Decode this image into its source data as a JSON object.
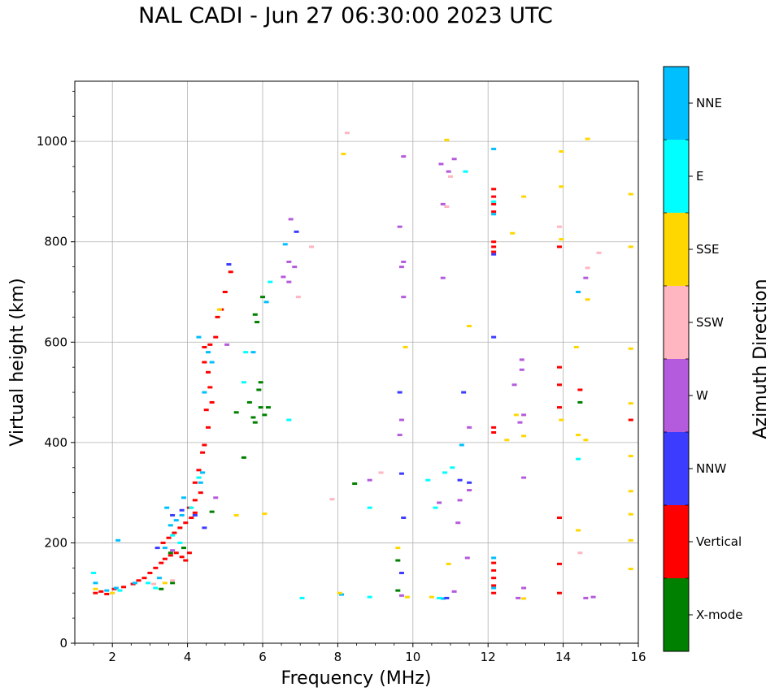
{
  "chart_data": {
    "type": "scatter",
    "title": "NAL CADI - Jun 27 06:30:00 2023 UTC",
    "xlabel": "Frequency (MHz)",
    "ylabel": "Virtual height (km)",
    "xlim": [
      1,
      16
    ],
    "ylim": [
      0,
      1120
    ],
    "xticks": [
      2,
      4,
      6,
      8,
      10,
      12,
      14,
      16
    ],
    "yticks": [
      0,
      200,
      400,
      600,
      800,
      1000
    ],
    "grid": true,
    "colorbar": {
      "label": "Azimuth Direction",
      "categories": [
        {
          "name": "X-mode",
          "color": "#008000"
        },
        {
          "name": "Vertical",
          "color": "#ff0000"
        },
        {
          "name": "NNW",
          "color": "#3c3cff"
        },
        {
          "name": "W",
          "color": "#b45adc"
        },
        {
          "name": "SSW",
          "color": "#ffb6c1"
        },
        {
          "name": "SSE",
          "color": "#ffd700"
        },
        {
          "name": "E",
          "color": "#00ffff"
        },
        {
          "name": "NNE",
          "color": "#00bfff"
        }
      ]
    },
    "series": [
      {
        "name": "Vertical",
        "points": [
          [
            1.55,
            100
          ],
          [
            1.7,
            103
          ],
          [
            1.85,
            98
          ],
          [
            2.05,
            108
          ],
          [
            2.3,
            112
          ],
          [
            2.55,
            118
          ],
          [
            2.7,
            125
          ],
          [
            2.85,
            130
          ],
          [
            3.0,
            140
          ],
          [
            3.15,
            150
          ],
          [
            3.3,
            160
          ],
          [
            3.4,
            168
          ],
          [
            3.55,
            175
          ],
          [
            3.7,
            180
          ],
          [
            3.85,
            172
          ],
          [
            3.95,
            165
          ],
          [
            4.05,
            180
          ],
          [
            3.35,
            200
          ],
          [
            3.5,
            210
          ],
          [
            3.65,
            220
          ],
          [
            3.8,
            230
          ],
          [
            3.95,
            240
          ],
          [
            4.1,
            250
          ],
          [
            4.2,
            260
          ],
          [
            4.05,
            270
          ],
          [
            4.2,
            285
          ],
          [
            4.35,
            300
          ],
          [
            4.2,
            320
          ],
          [
            4.3,
            345
          ],
          [
            4.4,
            380
          ],
          [
            4.45,
            395
          ],
          [
            4.55,
            430
          ],
          [
            4.5,
            465
          ],
          [
            4.65,
            480
          ],
          [
            4.6,
            510
          ],
          [
            4.55,
            540
          ],
          [
            4.45,
            560
          ],
          [
            4.45,
            590
          ],
          [
            4.6,
            595
          ],
          [
            4.75,
            610
          ],
          [
            4.8,
            650
          ],
          [
            4.9,
            665
          ],
          [
            5.0,
            700
          ],
          [
            5.15,
            740
          ],
          [
            12.15,
            100
          ],
          [
            12.15,
            115
          ],
          [
            12.15,
            130
          ],
          [
            12.15,
            145
          ],
          [
            12.15,
            160
          ],
          [
            12.15,
            420
          ],
          [
            12.15,
            430
          ],
          [
            12.15,
            780
          ],
          [
            12.15,
            790
          ],
          [
            12.15,
            800
          ],
          [
            12.15,
            860
          ],
          [
            12.15,
            875
          ],
          [
            12.15,
            890
          ],
          [
            12.15,
            905
          ],
          [
            13.9,
            100
          ],
          [
            13.9,
            158
          ],
          [
            13.9,
            250
          ],
          [
            13.9,
            470
          ],
          [
            13.9,
            515
          ],
          [
            13.9,
            550
          ],
          [
            13.9,
            790
          ],
          [
            14.45,
            505
          ],
          [
            15.8,
            445
          ]
        ]
      },
      {
        "name": "NNE",
        "points": [
          [
            1.55,
            120
          ],
          [
            1.85,
            105
          ],
          [
            2.1,
            110
          ],
          [
            2.15,
            205
          ],
          [
            2.6,
            120
          ],
          [
            3.25,
            130
          ],
          [
            3.4,
            190
          ],
          [
            3.55,
            235
          ],
          [
            3.7,
            245
          ],
          [
            3.85,
            255
          ],
          [
            3.45,
            270
          ],
          [
            3.9,
            290
          ],
          [
            4.35,
            320
          ],
          [
            4.4,
            340
          ],
          [
            4.65,
            560
          ],
          [
            4.45,
            500
          ],
          [
            4.3,
            610
          ],
          [
            4.55,
            580
          ],
          [
            6.1,
            680
          ],
          [
            6.6,
            795
          ],
          [
            5.75,
            580
          ],
          [
            12.15,
            110
          ],
          [
            12.15,
            170
          ],
          [
            12.15,
            855
          ],
          [
            12.15,
            985
          ],
          [
            11.3,
            395
          ],
          [
            14.4,
            700
          ],
          [
            8.1,
            97
          ],
          [
            10.8,
            89
          ]
        ]
      },
      {
        "name": "E",
        "points": [
          [
            1.5,
            140
          ],
          [
            2.2,
            105
          ],
          [
            2.95,
            120
          ],
          [
            3.15,
            110
          ],
          [
            3.6,
            215
          ],
          [
            3.8,
            200
          ],
          [
            4.1,
            270
          ],
          [
            4.3,
            330
          ],
          [
            5.55,
            580
          ],
          [
            5.5,
            520
          ],
          [
            6.2,
            720
          ],
          [
            6.7,
            445
          ],
          [
            7.05,
            90
          ],
          [
            8.85,
            270
          ],
          [
            10.4,
            325
          ],
          [
            10.6,
            270
          ],
          [
            10.85,
            340
          ],
          [
            11.05,
            350
          ],
          [
            11.4,
            940
          ],
          [
            12.15,
            880
          ],
          [
            14.4,
            367
          ],
          [
            8.85,
            92
          ],
          [
            10.7,
            90
          ]
        ]
      },
      {
        "name": "X-mode",
        "points": [
          [
            3.3,
            108
          ],
          [
            3.6,
            120
          ],
          [
            3.55,
            180
          ],
          [
            3.9,
            190
          ],
          [
            4.65,
            262
          ],
          [
            5.3,
            460
          ],
          [
            5.5,
            370
          ],
          [
            5.65,
            480
          ],
          [
            5.75,
            450
          ],
          [
            5.8,
            440
          ],
          [
            5.95,
            470
          ],
          [
            6.05,
            455
          ],
          [
            6.15,
            470
          ],
          [
            5.9,
            505
          ],
          [
            5.95,
            520
          ],
          [
            5.85,
            640
          ],
          [
            5.8,
            655
          ],
          [
            6.0,
            690
          ],
          [
            8.45,
            318
          ],
          [
            9.6,
            105
          ],
          [
            9.6,
            165
          ],
          [
            14.45,
            480
          ]
        ]
      },
      {
        "name": "NNW",
        "points": [
          [
            3.2,
            190
          ],
          [
            3.6,
            255
          ],
          [
            3.85,
            265
          ],
          [
            4.2,
            255
          ],
          [
            4.45,
            230
          ],
          [
            5.1,
            755
          ],
          [
            6.9,
            820
          ],
          [
            9.7,
            338
          ],
          [
            9.75,
            250
          ],
          [
            9.65,
            500
          ],
          [
            11.35,
            500
          ],
          [
            11.25,
            325
          ],
          [
            11.5,
            320
          ],
          [
            12.15,
            610
          ],
          [
            12.15,
            775
          ],
          [
            10.9,
            90
          ],
          [
            9.7,
            140
          ]
        ]
      },
      {
        "name": "W",
        "points": [
          [
            3.6,
            185
          ],
          [
            4.75,
            290
          ],
          [
            5.05,
            595
          ],
          [
            6.55,
            730
          ],
          [
            6.7,
            720
          ],
          [
            6.75,
            845
          ],
          [
            6.7,
            760
          ],
          [
            6.85,
            750
          ],
          [
            8.85,
            325
          ],
          [
            9.65,
            415
          ],
          [
            9.7,
            445
          ],
          [
            9.75,
            690
          ],
          [
            9.7,
            750
          ],
          [
            9.75,
            760
          ],
          [
            9.65,
            830
          ],
          [
            9.75,
            970
          ],
          [
            9.7,
            95
          ],
          [
            10.7,
            280
          ],
          [
            10.8,
            728
          ],
          [
            10.8,
            875
          ],
          [
            10.75,
            955
          ],
          [
            10.95,
            940
          ],
          [
            11.1,
            965
          ],
          [
            11.2,
            240
          ],
          [
            11.25,
            285
          ],
          [
            11.45,
            170
          ],
          [
            11.5,
            305
          ],
          [
            11.5,
            430
          ],
          [
            11.1,
            103
          ],
          [
            12.7,
            515
          ],
          [
            12.85,
            440
          ],
          [
            12.9,
            565
          ],
          [
            12.9,
            545
          ],
          [
            12.95,
            455
          ],
          [
            12.95,
            330
          ],
          [
            12.95,
            110
          ],
          [
            12.8,
            90
          ],
          [
            14.6,
            728
          ],
          [
            14.6,
            90
          ],
          [
            14.8,
            92
          ]
        ]
      },
      {
        "name": "SSW",
        "points": [
          [
            3.1,
            118
          ],
          [
            3.6,
            125
          ],
          [
            6.95,
            690
          ],
          [
            7.3,
            790
          ],
          [
            7.85,
            287
          ],
          [
            8.25,
            1017
          ],
          [
            9.15,
            340
          ],
          [
            10.9,
            870
          ],
          [
            11.0,
            930
          ],
          [
            13.9,
            830
          ],
          [
            14.45,
            180
          ],
          [
            14.65,
            748
          ],
          [
            14.95,
            778
          ]
        ]
      },
      {
        "name": "SSE",
        "points": [
          [
            1.55,
            108
          ],
          [
            2.0,
            100
          ],
          [
            3.4,
            120
          ],
          [
            4.85,
            665
          ],
          [
            5.3,
            255
          ],
          [
            6.05,
            258
          ],
          [
            8.05,
            100
          ],
          [
            8.15,
            975
          ],
          [
            9.8,
            590
          ],
          [
            9.85,
            92
          ],
          [
            9.6,
            190
          ],
          [
            10.5,
            92
          ],
          [
            10.95,
            158
          ],
          [
            10.9,
            1003
          ],
          [
            11.5,
            632
          ],
          [
            12.5,
            405
          ],
          [
            12.65,
            817
          ],
          [
            12.75,
            455
          ],
          [
            12.95,
            890
          ],
          [
            12.95,
            413
          ],
          [
            12.95,
            89
          ],
          [
            13.95,
            445
          ],
          [
            13.95,
            805
          ],
          [
            13.95,
            910
          ],
          [
            13.95,
            980
          ],
          [
            14.4,
            225
          ],
          [
            14.4,
            415
          ],
          [
            14.35,
            590
          ],
          [
            14.6,
            405
          ],
          [
            14.65,
            685
          ],
          [
            14.65,
            1005
          ],
          [
            15.8,
            895
          ],
          [
            15.8,
            790
          ],
          [
            15.8,
            587
          ],
          [
            15.8,
            478
          ],
          [
            15.8,
            373
          ],
          [
            15.8,
            303
          ],
          [
            15.8,
            257
          ],
          [
            15.8,
            205
          ],
          [
            15.8,
            148
          ]
        ]
      }
    ]
  }
}
